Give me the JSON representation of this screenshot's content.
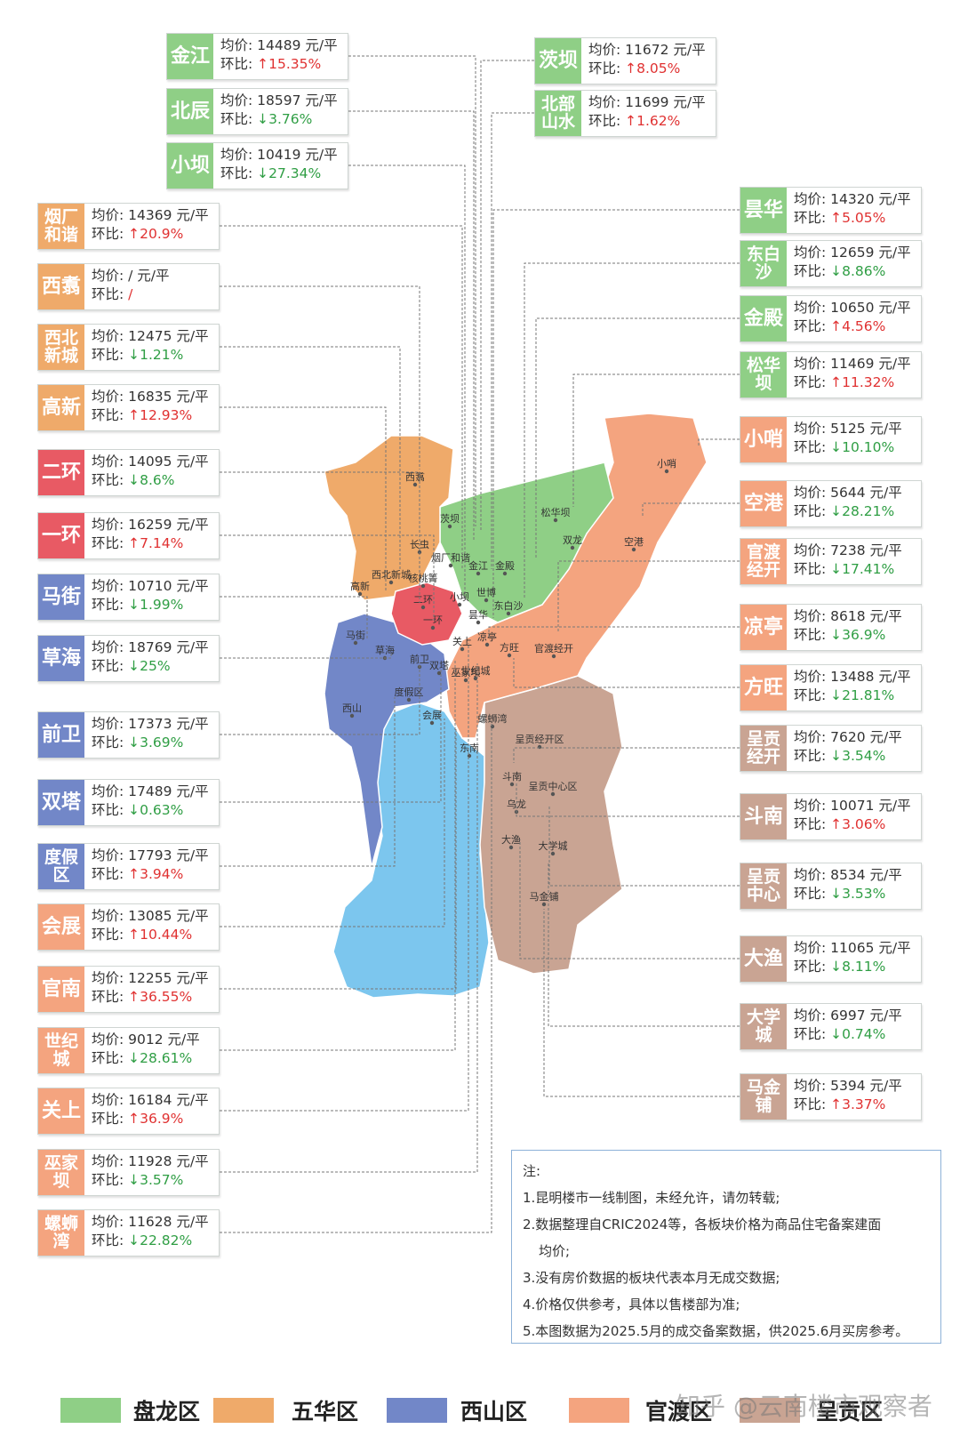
{
  "colors": {
    "panlong": "#8fcf86",
    "wuhua": "#efaa6a",
    "xishan": "#7287c8",
    "guandu": "#f4a47f",
    "chenggong": "#c9a493",
    "core": "#e85a64",
    "lake": "#7cc6ee",
    "up": "#e03131",
    "down": "#2f9e44"
  },
  "common": {
    "price_label": "均价:",
    "change_label": "环比:",
    "unit": "元/平"
  },
  "left_cards": [
    {
      "name": "金江",
      "price": "14489",
      "arrow": "↑",
      "change": "15.35%",
      "dir": "up",
      "district": "panlong"
    },
    {
      "name": "北辰",
      "price": "18597",
      "arrow": "↓",
      "change": "3.76%",
      "dir": "down",
      "district": "panlong"
    },
    {
      "name": "小坝",
      "price": "10419",
      "arrow": "↓",
      "change": "27.34%",
      "dir": "down",
      "district": "panlong"
    },
    {
      "name": "烟厂和谐",
      "price": "14369",
      "arrow": "↑",
      "change": "20.9%",
      "dir": "up",
      "district": "wuhua"
    },
    {
      "name": "西翥",
      "price": "/",
      "arrow": "",
      "change": "/",
      "dir": "up",
      "district": "wuhua"
    },
    {
      "name": "西北新城",
      "price": "12475",
      "arrow": "↓",
      "change": "1.21%",
      "dir": "down",
      "district": "wuhua"
    },
    {
      "name": "高新",
      "price": "16835",
      "arrow": "↑",
      "change": "12.93%",
      "dir": "up",
      "district": "wuhua"
    },
    {
      "name": "二环",
      "price": "14095",
      "arrow": "↓",
      "change": "8.6%",
      "dir": "down",
      "district": "core"
    },
    {
      "name": "一环",
      "price": "16259",
      "arrow": "↑",
      "change": "7.14%",
      "dir": "up",
      "district": "core"
    },
    {
      "name": "马街",
      "price": "10710",
      "arrow": "↓",
      "change": "1.99%",
      "dir": "down",
      "district": "xishan"
    },
    {
      "name": "草海",
      "price": "18769",
      "arrow": "↓",
      "change": "25%",
      "dir": "down",
      "district": "xishan"
    },
    {
      "name": "前卫",
      "price": "17373",
      "arrow": "↓",
      "change": "3.69%",
      "dir": "down",
      "district": "xishan"
    },
    {
      "name": "双塔",
      "price": "17489",
      "arrow": "↓",
      "change": "0.63%",
      "dir": "down",
      "district": "xishan"
    },
    {
      "name": "度假区",
      "price": "17793",
      "arrow": "↑",
      "change": "3.94%",
      "dir": "up",
      "district": "xishan"
    },
    {
      "name": "会展",
      "price": "13085",
      "arrow": "↑",
      "change": "10.44%",
      "dir": "up",
      "district": "guandu"
    },
    {
      "name": "官南",
      "price": "12255",
      "arrow": "↑",
      "change": "36.55%",
      "dir": "up",
      "district": "guandu"
    },
    {
      "name": "世纪城",
      "price": "9012",
      "arrow": "↓",
      "change": "28.61%",
      "dir": "down",
      "district": "guandu"
    },
    {
      "name": "关上",
      "price": "16184",
      "arrow": "↑",
      "change": "36.9%",
      "dir": "up",
      "district": "guandu"
    },
    {
      "name": "巫家坝",
      "price": "11928",
      "arrow": "↓",
      "change": "3.57%",
      "dir": "down",
      "district": "guandu"
    },
    {
      "name": "螺蛳湾",
      "price": "11628",
      "arrow": "↓",
      "change": "22.82%",
      "dir": "down",
      "district": "guandu"
    }
  ],
  "right_cards": [
    {
      "name": "茨坝",
      "price": "11672",
      "arrow": "↑",
      "change": "8.05%",
      "dir": "up",
      "district": "panlong"
    },
    {
      "name": "北部山水",
      "price": "11699",
      "arrow": "↑",
      "change": "1.62%",
      "dir": "up",
      "district": "panlong"
    },
    {
      "name": "昙华",
      "price": "14320",
      "arrow": "↑",
      "change": "5.05%",
      "dir": "up",
      "district": "panlong"
    },
    {
      "name": "东白沙",
      "price": "12659",
      "arrow": "↓",
      "change": "8.86%",
      "dir": "down",
      "district": "panlong"
    },
    {
      "name": "金殿",
      "price": "10650",
      "arrow": "↑",
      "change": "4.56%",
      "dir": "up",
      "district": "panlong"
    },
    {
      "name": "松华坝",
      "price": "11469",
      "arrow": "↑",
      "change": "11.32%",
      "dir": "up",
      "district": "panlong"
    },
    {
      "name": "小哨",
      "price": "5125",
      "arrow": "↓",
      "change": "10.10%",
      "dir": "down",
      "district": "guandu"
    },
    {
      "name": "空港",
      "price": "5644",
      "arrow": "↓",
      "change": "28.21%",
      "dir": "down",
      "district": "guandu"
    },
    {
      "name": "官渡经开",
      "price": "7238",
      "arrow": "↓",
      "change": "17.41%",
      "dir": "down",
      "district": "guandu"
    },
    {
      "name": "凉亭",
      "price": "8618",
      "arrow": "↓",
      "change": "36.9%",
      "dir": "down",
      "district": "guandu"
    },
    {
      "name": "方旺",
      "price": "13488",
      "arrow": "↓",
      "change": "21.81%",
      "dir": "down",
      "district": "guandu"
    },
    {
      "name": "呈贡经开",
      "price": "7620",
      "arrow": "↓",
      "change": "3.54%",
      "dir": "down",
      "district": "chenggong"
    },
    {
      "name": "斗南",
      "price": "10071",
      "arrow": "↑",
      "change": "3.06%",
      "dir": "up",
      "district": "chenggong"
    },
    {
      "name": "呈贡中心",
      "price": "8534",
      "arrow": "↓",
      "change": "3.53%",
      "dir": "down",
      "district": "chenggong"
    },
    {
      "name": "大渔",
      "price": "11065",
      "arrow": "↓",
      "change": "8.11%",
      "dir": "down",
      "district": "chenggong"
    },
    {
      "name": "大学城",
      "price": "6997",
      "arrow": "↓",
      "change": "0.74%",
      "dir": "down",
      "district": "chenggong"
    },
    {
      "name": "马金铺",
      "price": "5394",
      "arrow": "↑",
      "change": "3.37%",
      "dir": "up",
      "district": "chenggong"
    }
  ],
  "map_labels": [
    "西翥",
    "茨坝",
    "小哨",
    "松华坝",
    "双龙",
    "空港",
    "长虫",
    "烟厂和谐",
    "金江",
    "金殿",
    "西北新城",
    "核桃箐",
    "高新",
    "二环",
    "小坝",
    "世博",
    "东白沙",
    "一环",
    "昙华",
    "关上",
    "凉亭",
    "马街",
    "草海",
    "方旺",
    "官渡经开",
    "前卫",
    "双塔",
    "度假区",
    "巫家坝",
    "世纪城",
    "会展",
    "螺蛳湾",
    "西山",
    "呈贡经开区",
    "东南",
    "斗南",
    "呈贡中心区",
    "乌龙",
    "大渔",
    "大学城",
    "马金铺"
  ],
  "note": {
    "title": "注:",
    "lines": [
      "1.昆明楼市一线制图，未经允许，请勿转载;",
      "2.数据整理自CRIC2024等，各板块价格为商品住宅备案建面",
      "均价;",
      "3.没有房价数据的板块代表本月无成交数据;",
      "4.价格仅供参考，具体以售楼部为准;",
      "5.本图数据为2025.5月的成交备案数据，供2025.6月买房参考。"
    ]
  },
  "legend": [
    {
      "label": "盘龙区",
      "color": "#8fcf86"
    },
    {
      "label": "五华区",
      "color": "#efaa6a"
    },
    {
      "label": "西山区",
      "color": "#7287c8"
    },
    {
      "label": "官渡区",
      "color": "#f4a47f"
    },
    {
      "label": "呈贡区",
      "color": "#c9a493"
    }
  ],
  "watermark": "知乎 @云南楼市观察者"
}
